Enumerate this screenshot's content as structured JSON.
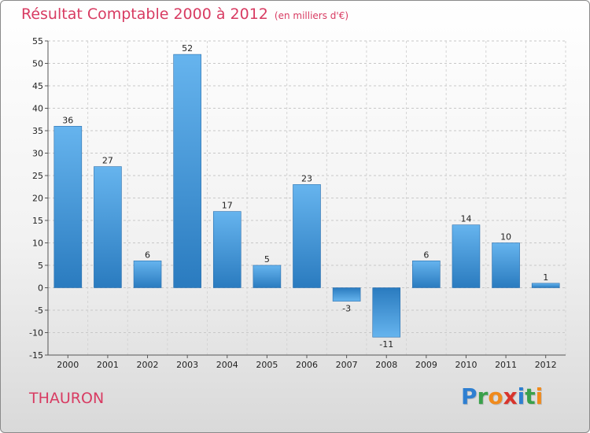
{
  "chart_data": {
    "type": "bar",
    "title": "Résultat Comptable 2000 à 2012",
    "subtitle": "(en milliers d'€)",
    "categories": [
      "2000",
      "2001",
      "2002",
      "2003",
      "2004",
      "2005",
      "2006",
      "2007",
      "2008",
      "2009",
      "2010",
      "2011",
      "2012"
    ],
    "values": [
      36,
      27,
      6,
      52,
      17,
      5,
      23,
      -3,
      -11,
      6,
      14,
      10,
      1
    ],
    "value_labels": [
      "36",
      "27",
      "6",
      "52",
      "17",
      "5",
      "23",
      "-3",
      "-11",
      "6",
      "14",
      "10",
      "1"
    ],
    "y_ticks": [
      -15,
      -10,
      -5,
      0,
      5,
      10,
      15,
      20,
      25,
      30,
      35,
      40,
      45,
      50,
      55
    ],
    "ylim": [
      -15,
      55
    ],
    "xlabel": "",
    "ylabel": "",
    "grid": true,
    "bar_color": "#3f94d6"
  },
  "footer": {
    "commune": "THAURON",
    "logo_letters": [
      "P",
      "r",
      "o",
      "x",
      "i",
      "t",
      "i"
    ],
    "logo_colors": [
      "#2e7fd1",
      "#3aa04a",
      "#f08a1c",
      "#d8342c",
      "#2e7fd1",
      "#3aa04a",
      "#f08a1c"
    ]
  }
}
